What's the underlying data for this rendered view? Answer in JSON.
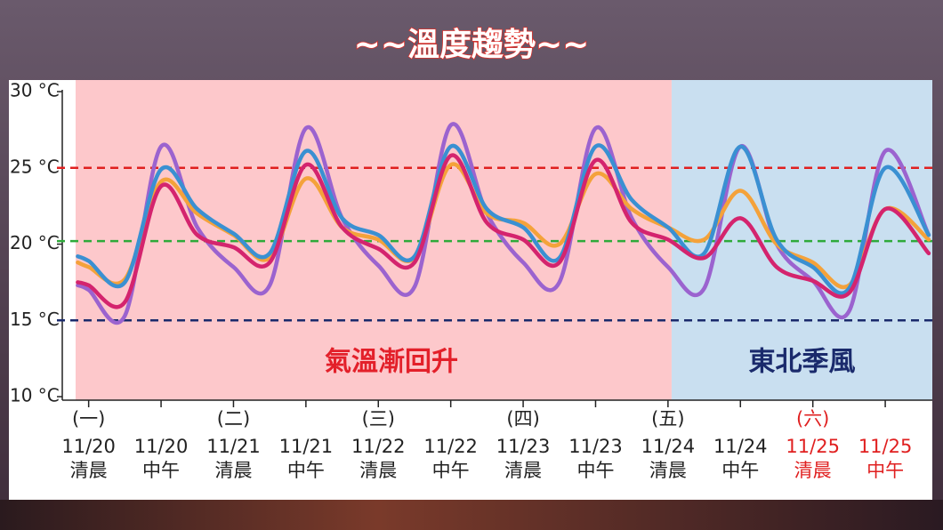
{
  "chart_data": {
    "type": "line",
    "title": "~~溫度趨勢~~",
    "x": [
      -0.15,
      0,
      0.5,
      1,
      1.5,
      2,
      2.5,
      3,
      3.5,
      4,
      4.5,
      5,
      5.5,
      6,
      6.5,
      7,
      7.5,
      8,
      8.5,
      9,
      9.5,
      10,
      10.5,
      11,
      11.6
    ],
    "xlim": [
      -0.18,
      11.65
    ],
    "xticks": [
      {
        "value": 0,
        "label": "11/20"
      },
      {
        "value": 1,
        "label": "11/20"
      },
      {
        "value": 2,
        "label": "11/21"
      },
      {
        "value": 3,
        "label": "11/21"
      },
      {
        "value": 4,
        "label": "11/22"
      },
      {
        "value": 5,
        "label": "11/22"
      },
      {
        "value": 6,
        "label": "11/23"
      },
      {
        "value": 7,
        "label": "11/23"
      },
      {
        "value": 8,
        "label": "11/24"
      },
      {
        "value": 9,
        "label": "11/24"
      },
      {
        "value": 10,
        "label": "11/25"
      },
      {
        "value": 11,
        "label": "11/25"
      }
    ],
    "x_day_labels": [
      "(一)",
      null,
      "(二)",
      null,
      "(三)",
      null,
      "(四)",
      null,
      "(五)",
      null,
      "(六)",
      null
    ],
    "x_time_labels": [
      "清晨",
      "中午",
      "清晨",
      "中午",
      "清晨",
      "中午",
      "清晨",
      "中午",
      "清晨",
      "中午",
      "清晨",
      "中午"
    ],
    "x_label_colors": [
      "#222",
      "#222",
      "#222",
      "#222",
      "#222",
      "#222",
      "#222",
      "#222",
      "#222",
      "#222",
      "#e02020",
      "#e02020"
    ],
    "ylim": [
      9.77,
      30.76
    ],
    "yticks": [
      {
        "value": 10,
        "label": "10 °C"
      },
      {
        "value": 15,
        "label": "15 °C"
      },
      {
        "value": 20,
        "label": "20 °C"
      },
      {
        "value": 25,
        "label": "25 °C"
      },
      {
        "value": 30,
        "label": "30 °C"
      }
    ],
    "regions": [
      {
        "label": "氣溫漸回升",
        "from": -0.18,
        "to": 8.05,
        "color": "#fdc8cb",
        "text_color": "#e3202a"
      },
      {
        "label": "東北季風",
        "from": 8.05,
        "to": 11.65,
        "color": "#c9dff0",
        "text_color": "#1a2a6c"
      }
    ],
    "reference_lines": [
      {
        "value": 25,
        "color": "#e02020"
      },
      {
        "value": 20.2,
        "color": "#2eaa3a"
      },
      {
        "value": 15,
        "color": "#1a2a6c"
      }
    ],
    "series": [
      {
        "color": "#9b63cf",
        "values": [
          17.3,
          17.0,
          15.3,
          26.4,
          21.1,
          18.5,
          17.3,
          27.6,
          21.7,
          18.6,
          17.2,
          27.8,
          22.0,
          18.8,
          17.5,
          27.6,
          21.7,
          18.5,
          17.1,
          26.4,
          20.0,
          17.6,
          15.6,
          26.1,
          20.6
        ]
      },
      {
        "color": "#f4a23a",
        "values": [
          18.8,
          18.5,
          17.7,
          24.1,
          22.0,
          20.6,
          19.1,
          24.3,
          21.1,
          20.3,
          19.1,
          25.2,
          22.0,
          21.4,
          20.0,
          24.6,
          22.3,
          21.1,
          20.3,
          23.5,
          20.0,
          18.8,
          17.3,
          22.3,
          20.3
        ]
      },
      {
        "color": "#3a90d2",
        "values": [
          19.2,
          18.9,
          17.5,
          24.9,
          22.3,
          20.7,
          19.4,
          26.1,
          21.7,
          20.6,
          19.2,
          26.4,
          22.3,
          21.1,
          19.1,
          26.4,
          22.9,
          21.1,
          19.4,
          26.4,
          20.3,
          18.5,
          17.1,
          25.0,
          20.6
        ]
      },
      {
        "color": "#d4246e",
        "values": [
          17.5,
          17.3,
          16.2,
          23.8,
          20.6,
          19.8,
          18.8,
          25.2,
          21.1,
          19.7,
          18.8,
          25.8,
          21.4,
          20.3,
          18.8,
          25.5,
          21.4,
          20.3,
          19.1,
          21.7,
          18.5,
          17.6,
          16.8,
          22.3,
          19.4
        ]
      }
    ]
  }
}
